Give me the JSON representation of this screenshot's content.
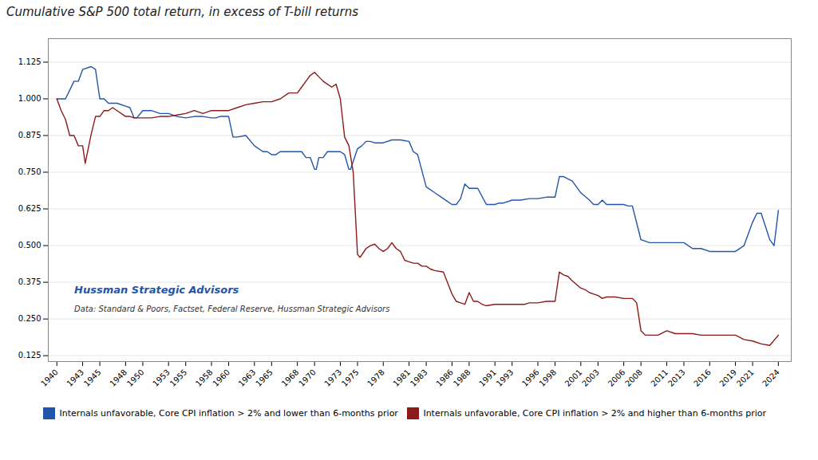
{
  "chart_data": {
    "type": "line",
    "title": "Cumulative S&P 500 total return, in excess of T-bill returns",
    "annotations": [
      {
        "text": "Hussman Strategic Advisors",
        "color": "#2255aa"
      },
      {
        "text": "Data: Standard & Poors, Factset, Federal Reserve, Hussman Strategic Advisors",
        "color": "#333333"
      }
    ],
    "xlim": [
      1939,
      2025.5
    ],
    "xticks": [
      1940,
      1943,
      1945,
      1948,
      1950,
      1953,
      1955,
      1958,
      1960,
      1963,
      1965,
      1968,
      1970,
      1973,
      1975,
      1978,
      1981,
      1983,
      1986,
      1988,
      1991,
      1993,
      1996,
      1998,
      2001,
      2003,
      2006,
      2008,
      2011,
      2013,
      2016,
      2019,
      2021,
      2024
    ],
    "ylim": [
      0.105,
      1.205
    ],
    "yticks": [
      0.125,
      {
        "value": 0.25,
        "label": "0.250"
      },
      0.375,
      {
        "value": 0.5,
        "label": "0.500"
      },
      0.625,
      {
        "value": 0.75,
        "label": "0.750"
      },
      0.875,
      {
        "value": 1.0,
        "label": "1.000"
      },
      1.125
    ],
    "grid": "y",
    "legend": "bottom",
    "series": [
      {
        "name": "Internals unfavorable, Core CPI inflation > 2% and lower than 6-months prior",
        "color": "#2255aa",
        "x": [
          1940,
          1941,
          1942,
          1942.5,
          1943,
          1944,
          1944.5,
          1945,
          1945.5,
          1946,
          1947,
          1948,
          1948.5,
          1949,
          1949.3,
          1950,
          1951,
          1952,
          1953,
          1954,
          1955,
          1956,
          1957,
          1958,
          1958.5,
          1959,
          1960,
          1960.5,
          1961,
          1962,
          1963,
          1964,
          1964.5,
          1965,
          1965.5,
          1966,
          1966.5,
          1967,
          1967.5,
          1968,
          1968.5,
          1969,
          1969.5,
          1970,
          1970.2,
          1970.5,
          1971,
          1971.5,
          1972,
          1973,
          1973.5,
          1974,
          1974.2,
          1975,
          1975.5,
          1976,
          1976.5,
          1977,
          1978,
          1979,
          1980,
          1981,
          1981.5,
          1982,
          1983,
          1984,
          1985,
          1986,
          1986.5,
          1987,
          1987.5,
          1988,
          1989,
          1990,
          1991,
          1991.5,
          1992,
          1993,
          1994,
          1995,
          1996,
          1997,
          1998,
          1998.5,
          1999,
          2000,
          2001,
          2002,
          2002.5,
          2003,
          2003.5,
          2004,
          2004.5,
          2005,
          2006,
          2006.5,
          2007,
          2008,
          2009,
          2010,
          2011,
          2012,
          2013,
          2014,
          2015,
          2016,
          2017,
          2018,
          2019,
          2020,
          2021,
          2021.5,
          2022,
          2023,
          2023.5,
          2024
        ],
        "values": [
          1.0,
          1.0,
          1.06,
          1.06,
          1.1,
          1.11,
          1.1,
          1.0,
          1.0,
          0.985,
          0.985,
          0.975,
          0.97,
          0.935,
          0.935,
          0.96,
          0.96,
          0.95,
          0.95,
          0.94,
          0.935,
          0.94,
          0.94,
          0.935,
          0.935,
          0.94,
          0.94,
          0.87,
          0.87,
          0.875,
          0.84,
          0.82,
          0.82,
          0.81,
          0.81,
          0.82,
          0.82,
          0.82,
          0.82,
          0.82,
          0.82,
          0.8,
          0.8,
          0.76,
          0.76,
          0.8,
          0.8,
          0.82,
          0.82,
          0.82,
          0.81,
          0.76,
          0.76,
          0.83,
          0.84,
          0.855,
          0.855,
          0.85,
          0.85,
          0.86,
          0.86,
          0.855,
          0.82,
          0.81,
          0.7,
          0.68,
          0.66,
          0.64,
          0.64,
          0.66,
          0.71,
          0.695,
          0.695,
          0.64,
          0.64,
          0.645,
          0.645,
          0.655,
          0.655,
          0.66,
          0.66,
          0.665,
          0.665,
          0.735,
          0.735,
          0.72,
          0.68,
          0.655,
          0.64,
          0.64,
          0.655,
          0.64,
          0.64,
          0.64,
          0.64,
          0.635,
          0.635,
          0.52,
          0.51,
          0.51,
          0.51,
          0.51,
          0.51,
          0.49,
          0.49,
          0.48,
          0.48,
          0.48,
          0.48,
          0.5,
          0.58,
          0.61,
          0.61,
          0.52,
          0.5,
          0.62
        ]
      },
      {
        "name": "Internals unfavorable, Core CPI inflation > 2% and higher than 6-months prior",
        "color": "#8b1a1a",
        "x": [
          1940,
          1940.5,
          1941,
          1941.5,
          1942,
          1942.5,
          1943,
          1943.3,
          1944,
          1944.5,
          1945,
          1945.5,
          1946,
          1946.5,
          1947,
          1948,
          1948.5,
          1949,
          1950,
          1951,
          1952,
          1953,
          1954,
          1955,
          1956,
          1957,
          1958,
          1959,
          1960,
          1961,
          1962,
          1963,
          1964,
          1965,
          1966,
          1967,
          1968,
          1968.5,
          1969,
          1969.5,
          1970,
          1970.5,
          1971,
          1971.5,
          1972,
          1972.5,
          1973,
          1973.5,
          1974,
          1974.5,
          1975,
          1975.3,
          1976,
          1976.5,
          1977,
          1977.5,
          1978,
          1978.5,
          1979,
          1979.5,
          1980,
          1980.5,
          1981,
          1981.5,
          1982,
          1982.5,
          1983,
          1983.5,
          1984,
          1985,
          1986,
          1986.5,
          1987,
          1987.5,
          1988,
          1988.5,
          1989,
          1989.5,
          1990,
          1991,
          1992,
          1993,
          1994,
          1994.5,
          1995,
          1996,
          1997,
          1998,
          1998.5,
          1999,
          1999.5,
          2000,
          2001,
          2001.5,
          2002,
          2002.5,
          2003,
          2003.5,
          2004,
          2005,
          2006,
          2007,
          2007.5,
          2008,
          2008.5,
          2009,
          2010,
          2011,
          2012,
          2013,
          2014,
          2015,
          2016,
          2017,
          2018,
          2019,
          2020,
          2021,
          2022,
          2023,
          2024
        ],
        "values": [
          1.0,
          0.96,
          0.93,
          0.875,
          0.875,
          0.84,
          0.84,
          0.78,
          0.88,
          0.94,
          0.94,
          0.96,
          0.96,
          0.97,
          0.96,
          0.94,
          0.94,
          0.935,
          0.935,
          0.935,
          0.94,
          0.94,
          0.945,
          0.95,
          0.96,
          0.95,
          0.96,
          0.96,
          0.96,
          0.97,
          0.98,
          0.985,
          0.99,
          0.99,
          1.0,
          1.02,
          1.02,
          1.04,
          1.06,
          1.08,
          1.09,
          1.075,
          1.06,
          1.05,
          1.04,
          1.05,
          1.0,
          0.87,
          0.84,
          0.75,
          0.47,
          0.46,
          0.49,
          0.5,
          0.505,
          0.49,
          0.48,
          0.49,
          0.51,
          0.49,
          0.48,
          0.45,
          0.445,
          0.44,
          0.44,
          0.43,
          0.43,
          0.42,
          0.415,
          0.41,
          0.335,
          0.31,
          0.305,
          0.3,
          0.34,
          0.31,
          0.31,
          0.3,
          0.295,
          0.3,
          0.3,
          0.3,
          0.3,
          0.3,
          0.305,
          0.305,
          0.31,
          0.31,
          0.41,
          0.4,
          0.395,
          0.38,
          0.355,
          0.35,
          0.34,
          0.335,
          0.33,
          0.32,
          0.325,
          0.325,
          0.32,
          0.32,
          0.305,
          0.21,
          0.195,
          0.195,
          0.195,
          0.21,
          0.2,
          0.2,
          0.2,
          0.195,
          0.195,
          0.195,
          0.195,
          0.195,
          0.18,
          0.175,
          0.165,
          0.16,
          0.195
        ]
      }
    ]
  }
}
